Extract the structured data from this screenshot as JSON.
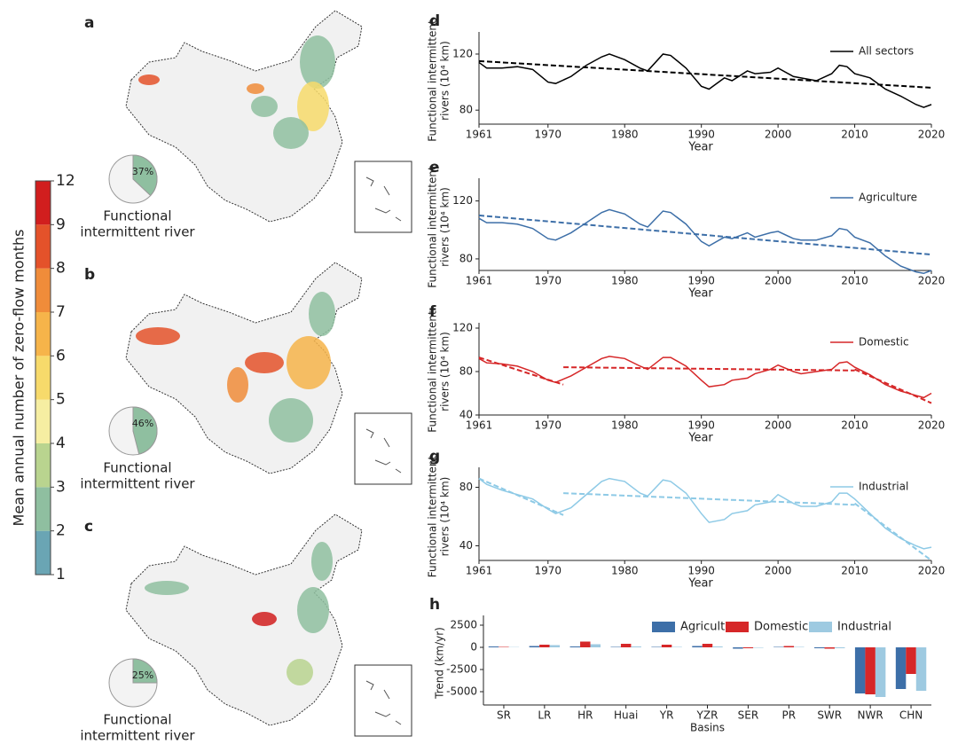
{
  "colorbar": {
    "label": "Mean annual number of zero-flow months",
    "ticks": [
      1,
      2,
      3,
      4,
      5,
      6,
      7,
      8,
      9,
      12
    ],
    "colors": [
      "#6aa5b4",
      "#8fbfa0",
      "#b9d48f",
      "#f6eea2",
      "#f7da6b",
      "#f6b44a",
      "#f08c3a",
      "#e4522a",
      "#d11e1e"
    ]
  },
  "maps": [
    {
      "panel": "a",
      "pie_value": 37,
      "pie_label": "37%",
      "caption": [
        "Functional",
        "intermittent river"
      ]
    },
    {
      "panel": "b",
      "pie_value": 46,
      "pie_label": "46%",
      "caption": [
        "Functional",
        "intermittent river"
      ]
    },
    {
      "panel": "c",
      "pie_value": 25,
      "pie_label": "25%",
      "caption": [
        "Functional",
        "intermittent river"
      ]
    }
  ],
  "chart_data": [
    {
      "type": "line",
      "panel": "d",
      "xlabel": "Year",
      "ylabel": [
        "Functional intermittent",
        "rivers (10⁴ km)"
      ],
      "xlim": [
        1961,
        2020
      ],
      "xticks": [
        1961,
        1970,
        1980,
        1990,
        2000,
        2010,
        2020
      ],
      "ylim": [
        70,
        132
      ],
      "yticks": [
        80,
        120
      ],
      "x": [
        1961,
        1962,
        1964,
        1966,
        1968,
        1970,
        1971,
        1973,
        1975,
        1977,
        1978,
        1980,
        1982,
        1983,
        1985,
        1986,
        1988,
        1990,
        1991,
        1993,
        1994,
        1996,
        1997,
        1999,
        2000,
        2002,
        2003,
        2005,
        2007,
        2008,
        2009,
        2010,
        2012,
        2014,
        2016,
        2018,
        2019,
        2020
      ],
      "series": [
        {
          "name": "All sectors",
          "color": "#000000",
          "values": [
            114,
            110,
            110,
            111,
            109,
            100,
            99,
            104,
            112,
            118,
            120,
            116,
            110,
            108,
            120,
            119,
            110,
            97,
            95,
            103,
            101,
            108,
            106,
            107,
            110,
            104,
            103,
            101,
            106,
            112,
            111,
            106,
            103,
            95,
            90,
            84,
            82,
            84
          ]
        }
      ],
      "trend": [
        {
          "color": "#000000",
          "x": [
            1961,
            2020
          ],
          "values": [
            115,
            96
          ]
        }
      ]
    },
    {
      "type": "line",
      "panel": "e",
      "xlabel": "Year",
      "ylabel": [
        "Functional intermittent",
        "rivers (10⁴ km)"
      ],
      "xlim": [
        1961,
        2020
      ],
      "xticks": [
        1961,
        1970,
        1980,
        1990,
        2000,
        2010,
        2020
      ],
      "ylim": [
        72,
        132
      ],
      "yticks": [
        80,
        120
      ],
      "x": [
        1961,
        1962,
        1964,
        1966,
        1968,
        1970,
        1971,
        1973,
        1975,
        1977,
        1978,
        1980,
        1982,
        1983,
        1985,
        1986,
        1988,
        1990,
        1991,
        1993,
        1994,
        1996,
        1997,
        1999,
        2000,
        2002,
        2003,
        2005,
        2007,
        2008,
        2009,
        2010,
        2012,
        2014,
        2016,
        2018,
        2019,
        2020
      ],
      "series": [
        {
          "name": "Agriculture",
          "color": "#3d6fa8",
          "values": [
            108,
            105,
            105,
            104,
            101,
            94,
            93,
            98,
            105,
            112,
            114,
            111,
            104,
            102,
            113,
            112,
            104,
            92,
            89,
            95,
            94,
            98,
            95,
            98,
            99,
            94,
            93,
            93,
            96,
            101,
            100,
            95,
            91,
            82,
            75,
            71,
            70,
            72
          ]
        }
      ],
      "trend": [
        {
          "color": "#3d6fa8",
          "x": [
            1961,
            2020
          ],
          "values": [
            110,
            83
          ]
        }
      ]
    },
    {
      "type": "line",
      "panel": "f",
      "xlabel": "Year",
      "ylabel": [
        "Functional intermittent",
        "rivers (10⁴ km)"
      ],
      "xlim": [
        1961,
        2020
      ],
      "xticks": [
        1961,
        1970,
        1980,
        1990,
        2000,
        2010,
        2020
      ],
      "ylim": [
        40,
        120
      ],
      "yticks": [
        40,
        80,
        120
      ],
      "x": [
        1961,
        1962,
        1964,
        1966,
        1968,
        1970,
        1971,
        1973,
        1975,
        1977,
        1978,
        1980,
        1982,
        1983,
        1985,
        1986,
        1988,
        1990,
        1991,
        1993,
        1994,
        1996,
        1997,
        1999,
        2000,
        2002,
        2003,
        2005,
        2007,
        2008,
        2009,
        2010,
        2012,
        2014,
        2016,
        2018,
        2019,
        2020
      ],
      "series": [
        {
          "name": "Domestic",
          "color": "#d62728",
          "values": [
            92,
            88,
            87,
            85,
            80,
            72,
            70,
            76,
            84,
            92,
            94,
            92,
            85,
            82,
            93,
            93,
            85,
            72,
            66,
            68,
            72,
            74,
            78,
            82,
            86,
            80,
            78,
            80,
            82,
            88,
            89,
            84,
            77,
            68,
            62,
            58,
            56,
            60
          ]
        }
      ],
      "trend": [
        {
          "color": "#d62728",
          "x": [
            1961,
            1972
          ],
          "values": [
            93,
            68
          ]
        },
        {
          "color": "#d62728",
          "x": [
            1972,
            2010
          ],
          "values": [
            84,
            81
          ]
        },
        {
          "color": "#d62728",
          "x": [
            2010,
            2020
          ],
          "values": [
            82,
            51
          ]
        }
      ]
    },
    {
      "type": "line",
      "panel": "g",
      "xlabel": "Year",
      "ylabel": [
        "Functional intermittent",
        "rivers (10⁴ km)"
      ],
      "xlim": [
        1961,
        2020
      ],
      "xticks": [
        1961,
        1970,
        1980,
        1990,
        2000,
        2010,
        2020
      ],
      "ylim": [
        30,
        90
      ],
      "yticks": [
        40,
        80
      ],
      "x": [
        1961,
        1962,
        1964,
        1966,
        1968,
        1970,
        1971,
        1973,
        1975,
        1977,
        1978,
        1980,
        1982,
        1983,
        1985,
        1986,
        1988,
        1990,
        1991,
        1993,
        1994,
        1996,
        1997,
        1999,
        2000,
        2002,
        2003,
        2005,
        2007,
        2008,
        2009,
        2010,
        2012,
        2014,
        2016,
        2018,
        2019,
        2020
      ],
      "series": [
        {
          "name": "Industrial",
          "color": "#8ecae6",
          "values": [
            86,
            82,
            78,
            75,
            72,
            65,
            62,
            66,
            75,
            84,
            86,
            84,
            76,
            74,
            85,
            84,
            76,
            62,
            56,
            58,
            62,
            64,
            68,
            70,
            75,
            69,
            67,
            67,
            70,
            76,
            76,
            72,
            62,
            52,
            45,
            40,
            38,
            39
          ]
        }
      ],
      "trend": [
        {
          "color": "#8ecae6",
          "x": [
            1961,
            1972
          ],
          "values": [
            86,
            61
          ]
        },
        {
          "color": "#8ecae6",
          "x": [
            1972,
            2010
          ],
          "values": [
            76,
            68
          ]
        },
        {
          "color": "#8ecae6",
          "x": [
            2010,
            2020
          ],
          "values": [
            69,
            30
          ]
        }
      ]
    },
    {
      "type": "bar",
      "panel": "h",
      "xlabel": "Basins",
      "ylabel": "Trend (km/yr)",
      "legend": "upper right",
      "categories": [
        "SR",
        "LR",
        "HR",
        "Huai",
        "YR",
        "YZR",
        "SER",
        "PR",
        "SWR",
        "NWR",
        "CHN"
      ],
      "ylim": [
        -6500,
        3000
      ],
      "yticks": [
        -5000,
        -2500,
        0,
        2500
      ],
      "series": [
        {
          "name": "Agriculture",
          "color": "#3d6fa8",
          "values": [
            100,
            150,
            100,
            50,
            50,
            150,
            -150,
            50,
            -100,
            -5200,
            -4700
          ]
        },
        {
          "name": "Domestic",
          "color": "#d62728",
          "values": [
            50,
            300,
            650,
            400,
            300,
            400,
            -100,
            150,
            -150,
            -5300,
            -3000
          ]
        },
        {
          "name": "Industrial",
          "color": "#9ecae1",
          "values": [
            30,
            250,
            350,
            100,
            50,
            100,
            -50,
            50,
            -100,
            -5600,
            -4900
          ]
        }
      ]
    }
  ]
}
